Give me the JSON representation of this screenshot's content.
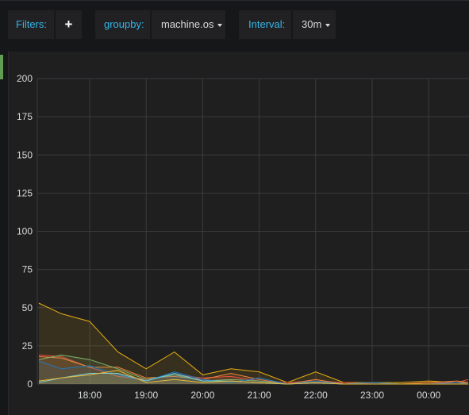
{
  "toolbar": {
    "filters_label": "Filters:",
    "add_filter_icon": "plus-icon",
    "add_filter_symbol": "+",
    "groupby_label": "groupby:",
    "groupby_value": "machine.os",
    "interval_label": "Interval:",
    "interval_value": "30m"
  },
  "colors": {
    "background": "#161719",
    "panel": "#1f1f20",
    "grid": "#3b3b3e",
    "accent": "#629e51",
    "label": "#33b5e5"
  },
  "chart_data": {
    "type": "line",
    "title": "",
    "xlabel": "",
    "ylabel": "",
    "ylim": [
      0,
      200
    ],
    "y_ticks": [
      0,
      25,
      50,
      75,
      100,
      125,
      150,
      175,
      200
    ],
    "x_tick_labels": [
      "18:00",
      "19:00",
      "20:00",
      "21:00",
      "22:00",
      "23:00",
      "00:00"
    ],
    "x_tick_hours": [
      18,
      19,
      20,
      21,
      22,
      23,
      24
    ],
    "x_range_hours": [
      17.1,
      24.7
    ],
    "grid": true,
    "legend": "none",
    "fill_area": true,
    "x": [
      17.1,
      17.5,
      18.0,
      18.5,
      19.0,
      19.5,
      20.0,
      20.5,
      21.0,
      21.5,
      22.0,
      22.5,
      23.0,
      23.5,
      24.0,
      24.5,
      24.7
    ],
    "series": [
      {
        "color": "#e5ac0e",
        "values": [
          53,
          46,
          41,
          21,
          10,
          21,
          6,
          10,
          8,
          1,
          8,
          1,
          1,
          1,
          2,
          1,
          1
        ]
      },
      {
        "color": "#e24d42",
        "values": [
          19,
          18,
          11,
          5,
          3,
          6,
          4,
          5,
          2,
          1,
          2,
          1,
          0,
          0,
          1,
          1,
          3
        ]
      },
      {
        "color": "#ef843c",
        "values": [
          18,
          17,
          11,
          11,
          4,
          5,
          3,
          7,
          3,
          0,
          3,
          0,
          1,
          0,
          1,
          2,
          1
        ]
      },
      {
        "color": "#7eb26d",
        "values": [
          16,
          19,
          16,
          10,
          3,
          6,
          2,
          3,
          2,
          0,
          1,
          0,
          0,
          0,
          0,
          0,
          0
        ]
      },
      {
        "color": "#1f78c1",
        "values": [
          15,
          10,
          12,
          6,
          2,
          8,
          3,
          1,
          4,
          0,
          2,
          0,
          1,
          0,
          0,
          1,
          0
        ]
      },
      {
        "color": "#6ed0e0",
        "values": [
          1,
          4,
          7,
          7,
          2,
          7,
          2,
          2,
          1,
          0,
          1,
          0,
          0,
          0,
          0,
          0,
          0
        ]
      },
      {
        "color": "#eab839",
        "values": [
          2,
          4,
          6,
          9,
          1,
          3,
          1,
          2,
          1,
          0,
          1,
          0,
          0,
          0,
          0,
          0,
          0
        ]
      }
    ]
  }
}
